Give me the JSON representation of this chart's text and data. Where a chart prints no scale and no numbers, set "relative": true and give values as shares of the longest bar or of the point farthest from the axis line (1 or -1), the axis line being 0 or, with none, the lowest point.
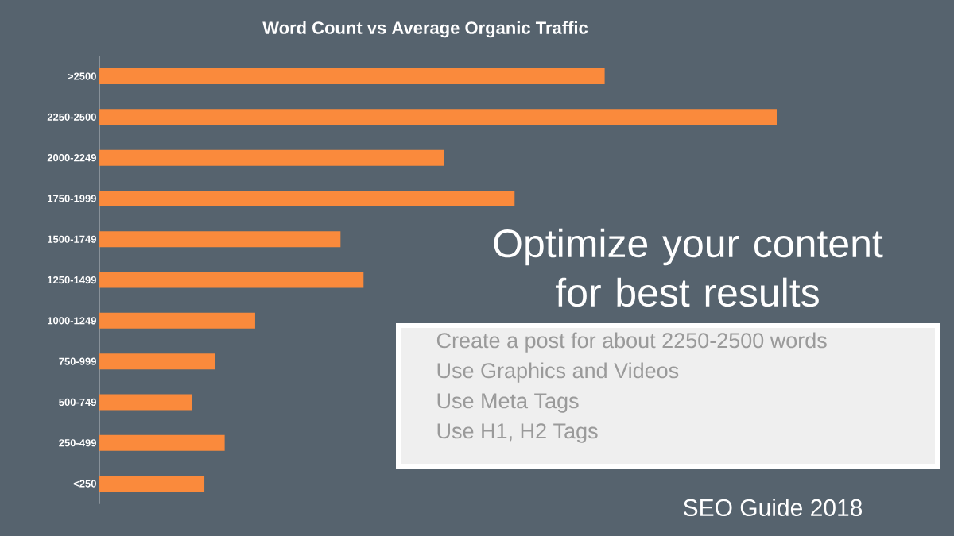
{
  "chart_data": {
    "type": "bar",
    "orientation": "horizontal",
    "relative": true,
    "title": "Word Count vs Average Organic Traffic",
    "categories": [
      ">2500",
      "2250-2500",
      "2000-2249",
      "1750-1999",
      "1500-1749",
      "1250-1499",
      "1000-1249",
      "750-999",
      "500-749",
      "250-499",
      "<250"
    ],
    "values": [
      0.746,
      1,
      0.509,
      0.613,
      0.356,
      0.39,
      0.23,
      0.171,
      0.137,
      0.185,
      0.155
    ],
    "color": "#fa8a3c",
    "annotations": [
      "Optimize your content for best results",
      "Create a post for about 2250-2500 words",
      "Use Graphics and Videos",
      "Use Meta Tags",
      "Use H1, H2 Tags",
      "SEO Guide 2018"
    ]
  }
}
